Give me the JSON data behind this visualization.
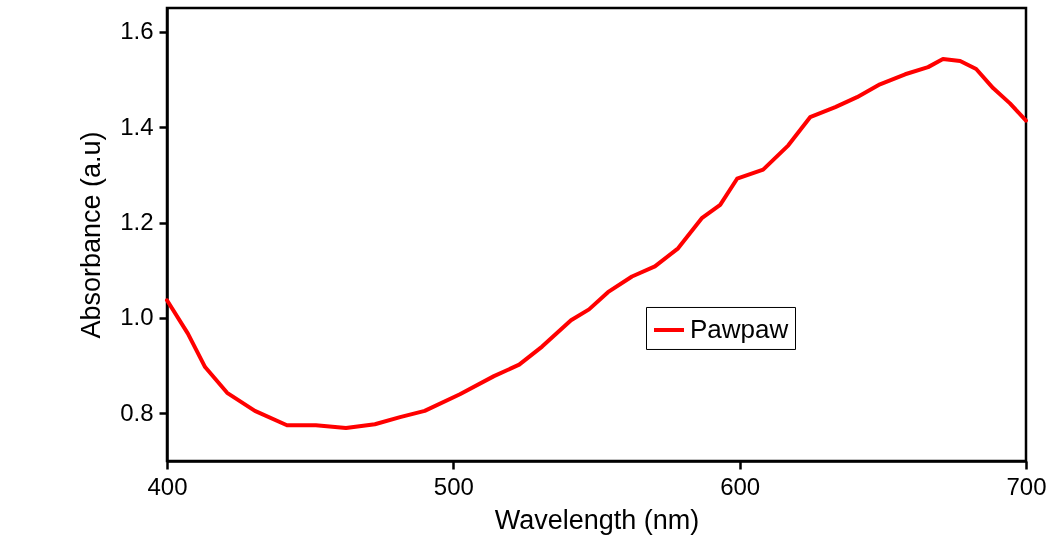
{
  "chart_data": {
    "type": "line",
    "xlabel": "Wavelength (nm)",
    "ylabel": "Absorbance (a.u)",
    "xlim": [
      400,
      700
    ],
    "ylim": [
      0.7,
      1.65
    ],
    "xticks": [
      400,
      500,
      600,
      700
    ],
    "yticks": [
      {
        "value": 0.8,
        "label": "0.8"
      },
      {
        "value": 1.0,
        "label": "1.0"
      },
      {
        "value": 1.2,
        "label": "1.2"
      },
      {
        "value": 1.4,
        "label": "1.4"
      },
      {
        "value": 1.6,
        "label": "1.6"
      }
    ],
    "grid": false,
    "legend": "right",
    "line_style": "solid",
    "marker": "none",
    "series": [
      {
        "name": "Pawpaw",
        "color": "#ff0000",
        "x": [
          400,
          407.3,
          413.3,
          421,
          430.7,
          441.9,
          452,
          462.5,
          472.6,
          481.4,
          490,
          502.3,
          514.2,
          523,
          531,
          541.1,
          547.4,
          554,
          562.4,
          570.4,
          578.5,
          586.9,
          593.2,
          599.1,
          608.2,
          617,
          624.6,
          633.4,
          641,
          649,
          657.8,
          665.8,
          671,
          677,
          682.6,
          688.5,
          694.4,
          700
        ],
        "values": [
          1.037,
          0.967,
          0.897,
          0.843,
          0.805,
          0.775,
          0.775,
          0.769,
          0.777,
          0.792,
          0.805,
          0.84,
          0.878,
          0.902,
          0.94,
          0.995,
          1.018,
          1.054,
          1.087,
          1.108,
          1.146,
          1.21,
          1.237,
          1.292,
          1.311,
          1.362,
          1.421,
          1.442,
          1.463,
          1.49,
          1.511,
          1.526,
          1.543,
          1.539,
          1.522,
          1.482,
          1.45,
          1.414
        ]
      }
    ]
  }
}
